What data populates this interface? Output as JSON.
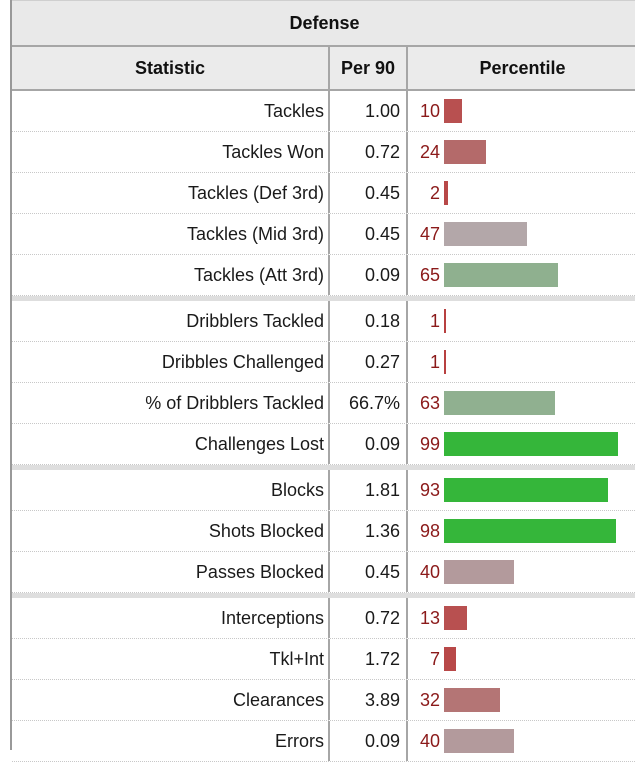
{
  "title": "Defense",
  "headers": {
    "statistic": "Statistic",
    "per90": "Per 90",
    "percentile": "Percentile"
  },
  "groups": [
    [
      {
        "stat": "Tackles",
        "per90": "1.00",
        "pct": "10",
        "pct_value": 10,
        "color": "#b85050"
      },
      {
        "stat": "Tackles Won",
        "per90": "0.72",
        "pct": "24",
        "pct_value": 24,
        "color": "#b46a6a"
      },
      {
        "stat": "Tackles (Def 3rd)",
        "per90": "0.45",
        "pct": "2",
        "pct_value": 2,
        "color": "#b84848"
      },
      {
        "stat": "Tackles (Mid 3rd)",
        "per90": "0.45",
        "pct": "47",
        "pct_value": 47,
        "color": "#b3a7a9"
      },
      {
        "stat": "Tackles (Att 3rd)",
        "per90": "0.09",
        "pct": "65",
        "pct_value": 65,
        "color": "#8fb08f"
      }
    ],
    [
      {
        "stat": "Dribblers Tackled",
        "per90": "0.18",
        "pct": "1",
        "pct_value": 1,
        "color": "#b84040"
      },
      {
        "stat": "Dribbles Challenged",
        "per90": "0.27",
        "pct": "1",
        "pct_value": 1,
        "color": "#b84040"
      },
      {
        "stat": "% of Dribblers Tackled",
        "per90": "66.7%",
        "pct": "63",
        "pct_value": 63,
        "color": "#90b090"
      },
      {
        "stat": "Challenges Lost",
        "per90": "0.09",
        "pct": "99",
        "pct_value": 99,
        "color": "#35b63a"
      }
    ],
    [
      {
        "stat": "Blocks",
        "per90": "1.81",
        "pct": "93",
        "pct_value": 93,
        "color": "#35b63a"
      },
      {
        "stat": "Shots Blocked",
        "per90": "1.36",
        "pct": "98",
        "pct_value": 98,
        "color": "#35b63a"
      },
      {
        "stat": "Passes Blocked",
        "per90": "0.45",
        "pct": "40",
        "pct_value": 40,
        "color": "#b39a9c"
      }
    ],
    [
      {
        "stat": "Interceptions",
        "per90": "0.72",
        "pct": "13",
        "pct_value": 13,
        "color": "#b85050"
      },
      {
        "stat": "Tkl+Int",
        "per90": "1.72",
        "pct": "7",
        "pct_value": 7,
        "color": "#b84848"
      },
      {
        "stat": "Clearances",
        "per90": "3.89",
        "pct": "32",
        "pct_value": 32,
        "color": "#b47575"
      },
      {
        "stat": "Errors",
        "per90": "0.09",
        "pct": "40",
        "pct_value": 40,
        "color": "#b39a9c"
      }
    ]
  ]
}
